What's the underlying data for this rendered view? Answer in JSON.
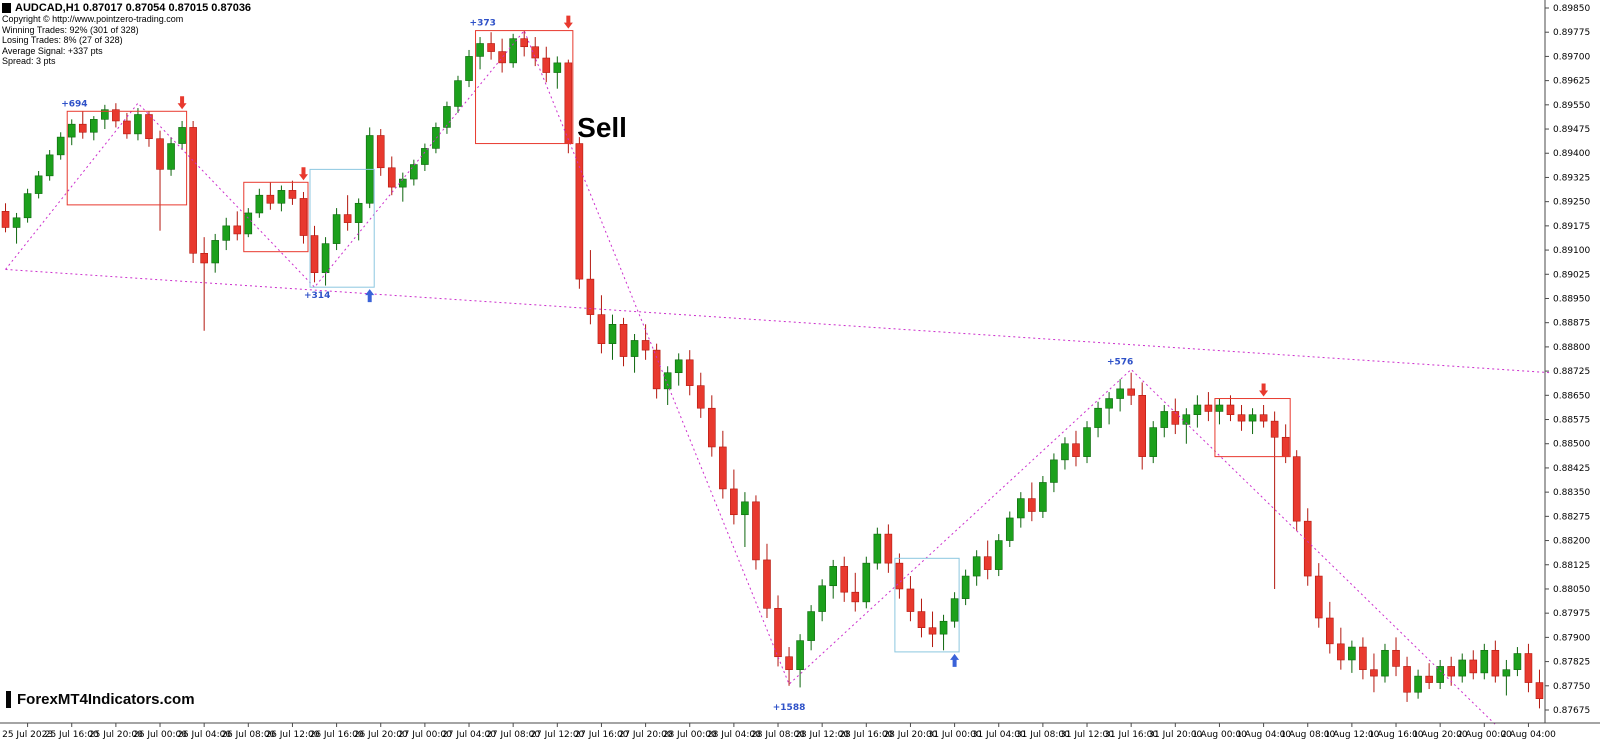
{
  "header": {
    "symbol_line": "AUDCAD,H1 0.87017 0.87054 0.87015 0.87036",
    "copyright": "Copyright © http://www.pointzero-trading.com",
    "winning": "Winning Trades: 92% (301 of 328)",
    "losing": "Losing Trades: 8% (27 of 328)",
    "average_signal": "Average Signal: +337 pts",
    "spread": "Spread: 3 pts"
  },
  "watermark": "ForexMT4Indicators.com",
  "chart_data": {
    "type": "candlestick",
    "symbol": "AUDCAD",
    "timeframe": "H1",
    "grid": false,
    "y_axis": {
      "min": 0.87675,
      "max": 0.8985,
      "step": 0.00075,
      "decimals": 5,
      "labels": [
        "0.89850",
        "0.89775",
        "0.89700",
        "0.89625",
        "0.89550",
        "0.89475",
        "0.89400",
        "0.89325",
        "0.89250",
        "0.89175",
        "0.89100",
        "0.89025",
        "0.88950",
        "0.88875",
        "0.88800",
        "0.88725",
        "0.88650",
        "0.88575",
        "0.88500",
        "0.88425",
        "0.88350",
        "0.88275",
        "0.88200",
        "0.88125",
        "0.88050",
        "0.87975",
        "0.87900",
        "0.87825",
        "0.87750",
        "0.87675"
      ]
    },
    "x_labels": [
      "25 Jul 2023",
      "25 Jul 16:00",
      "25 Jul 20:00",
      "26 Jul 00:00",
      "26 Jul 04:00",
      "26 Jul 08:00",
      "26 Jul 12:00",
      "26 Jul 16:00",
      "26 Jul 20:00",
      "27 Jul 00:00",
      "27 Jul 04:00",
      "27 Jul 08:00",
      "27 Jul 12:00",
      "27 Jul 16:00",
      "27 Jul 20:00",
      "28 Jul 00:00",
      "28 Jul 04:00",
      "28 Jul 08:00",
      "28 Jul 12:00",
      "28 Jul 16:00",
      "28 Jul 20:00",
      "31 Jul 00:00",
      "31 Jul 04:00",
      "31 Jul 08:00",
      "31 Jul 12:00",
      "31 Jul 16:00",
      "31 Jul 20:00",
      "1 Aug 00:00",
      "1 Aug 04:00",
      "1 Aug 08:00",
      "1 Aug 12:00",
      "1 Aug 16:00",
      "1 Aug 20:00",
      "2 Aug 00:00",
      "2 Aug 04:00"
    ],
    "x_label_first_candle": 2,
    "x_label_every": 4,
    "colors": {
      "bull": "#1CA01C",
      "bull_edge": "#0D660D",
      "bear": "#E8392E",
      "bear_edge": "#B3170E",
      "box_red": "#E8392E",
      "box_blue": "#8CC7E0",
      "label_blue": "#2E51C8",
      "buy_arrow": "#3A62D8",
      "sell_arrow": "#E8392E",
      "trendline": "#CC2ECC",
      "axis_text": "#000000",
      "axis_line": "#4A4A4A"
    },
    "candles": [
      [
        0.8922,
        0.89245,
        0.89155,
        0.8917
      ],
      [
        0.8917,
        0.89215,
        0.8912,
        0.892
      ],
      [
        0.892,
        0.8929,
        0.89185,
        0.89275
      ],
      [
        0.89275,
        0.89345,
        0.8926,
        0.8933
      ],
      [
        0.8933,
        0.8941,
        0.89315,
        0.89395
      ],
      [
        0.89395,
        0.89465,
        0.8938,
        0.8945
      ],
      [
        0.8945,
        0.89505,
        0.89425,
        0.8949
      ],
      [
        0.8949,
        0.8953,
        0.89445,
        0.89465
      ],
      [
        0.89465,
        0.89515,
        0.8944,
        0.89505
      ],
      [
        0.89505,
        0.8955,
        0.89475,
        0.89535
      ],
      [
        0.89535,
        0.89555,
        0.8948,
        0.895
      ],
      [
        0.895,
        0.89525,
        0.89445,
        0.8946
      ],
      [
        0.8946,
        0.8954,
        0.8944,
        0.8952
      ],
      [
        0.8952,
        0.8953,
        0.8942,
        0.89445
      ],
      [
        0.89445,
        0.8947,
        0.8916,
        0.8935
      ],
      [
        0.8935,
        0.8945,
        0.8933,
        0.8943
      ],
      [
        0.8943,
        0.895,
        0.8941,
        0.8948
      ],
      [
        0.8948,
        0.895,
        0.8906,
        0.8909
      ],
      [
        0.8909,
        0.8914,
        0.8885,
        0.8906
      ],
      [
        0.8906,
        0.8915,
        0.8903,
        0.8913
      ],
      [
        0.8913,
        0.892,
        0.891,
        0.89175
      ],
      [
        0.89175,
        0.8922,
        0.8913,
        0.8915
      ],
      [
        0.8915,
        0.8923,
        0.8914,
        0.89215
      ],
      [
        0.89215,
        0.8929,
        0.892,
        0.8927
      ],
      [
        0.8927,
        0.8931,
        0.89225,
        0.89245
      ],
      [
        0.89245,
        0.893,
        0.8922,
        0.89285
      ],
      [
        0.89285,
        0.89315,
        0.8924,
        0.8926
      ],
      [
        0.8926,
        0.8928,
        0.8912,
        0.89145
      ],
      [
        0.89145,
        0.89175,
        0.89,
        0.8903
      ],
      [
        0.8903,
        0.8914,
        0.8899,
        0.8912
      ],
      [
        0.8912,
        0.8923,
        0.891,
        0.8921
      ],
      [
        0.8921,
        0.8927,
        0.8916,
        0.89185
      ],
      [
        0.89185,
        0.8926,
        0.8913,
        0.89245
      ],
      [
        0.89245,
        0.8948,
        0.8923,
        0.89455
      ],
      [
        0.89455,
        0.89475,
        0.8933,
        0.89355
      ],
      [
        0.89355,
        0.8939,
        0.8927,
        0.89295
      ],
      [
        0.89295,
        0.8934,
        0.8925,
        0.8932
      ],
      [
        0.8932,
        0.8938,
        0.893,
        0.89365
      ],
      [
        0.89365,
        0.8943,
        0.89345,
        0.89415
      ],
      [
        0.89415,
        0.89495,
        0.894,
        0.8948
      ],
      [
        0.8948,
        0.8956,
        0.8946,
        0.89545
      ],
      [
        0.89545,
        0.8964,
        0.89525,
        0.89625
      ],
      [
        0.89625,
        0.8972,
        0.89605,
        0.897
      ],
      [
        0.897,
        0.8976,
        0.8966,
        0.8974
      ],
      [
        0.8974,
        0.89775,
        0.8969,
        0.89715
      ],
      [
        0.89715,
        0.89755,
        0.8965,
        0.8968
      ],
      [
        0.8968,
        0.8977,
        0.89665,
        0.89755
      ],
      [
        0.89755,
        0.8978,
        0.897,
        0.8973
      ],
      [
        0.8973,
        0.8976,
        0.8967,
        0.89695
      ],
      [
        0.89695,
        0.8973,
        0.8962,
        0.8965
      ],
      [
        0.8965,
        0.897,
        0.896,
        0.8968
      ],
      [
        0.8968,
        0.8969,
        0.894,
        0.8943
      ],
      [
        0.8943,
        0.8945,
        0.8898,
        0.8901
      ],
      [
        0.8901,
        0.891,
        0.8887,
        0.889
      ],
      [
        0.889,
        0.8896,
        0.8878,
        0.8881
      ],
      [
        0.8881,
        0.889,
        0.8876,
        0.8887
      ],
      [
        0.8887,
        0.8889,
        0.8874,
        0.8877
      ],
      [
        0.8877,
        0.8884,
        0.8872,
        0.8882
      ],
      [
        0.8882,
        0.8887,
        0.8876,
        0.8879
      ],
      [
        0.8879,
        0.8881,
        0.8864,
        0.8867
      ],
      [
        0.8867,
        0.8874,
        0.8862,
        0.8872
      ],
      [
        0.8872,
        0.8878,
        0.8868,
        0.8876
      ],
      [
        0.8876,
        0.8879,
        0.8865,
        0.8868
      ],
      [
        0.8868,
        0.8872,
        0.8858,
        0.8861
      ],
      [
        0.8861,
        0.8865,
        0.8846,
        0.8849
      ],
      [
        0.8849,
        0.8854,
        0.8833,
        0.8836
      ],
      [
        0.8836,
        0.8842,
        0.8825,
        0.8828
      ],
      [
        0.8828,
        0.8835,
        0.8818,
        0.8832
      ],
      [
        0.8832,
        0.8834,
        0.8811,
        0.8814
      ],
      [
        0.8814,
        0.8819,
        0.8796,
        0.8799
      ],
      [
        0.8799,
        0.8803,
        0.8781,
        0.8784
      ],
      [
        0.8784,
        0.8787,
        0.8775,
        0.878
      ],
      [
        0.878,
        0.8791,
        0.87745,
        0.8789
      ],
      [
        0.8789,
        0.88,
        0.8786,
        0.8798
      ],
      [
        0.8798,
        0.8808,
        0.8795,
        0.8806
      ],
      [
        0.8806,
        0.8814,
        0.8802,
        0.8812
      ],
      [
        0.8812,
        0.8815,
        0.8801,
        0.8804
      ],
      [
        0.8804,
        0.881,
        0.8798,
        0.8801
      ],
      [
        0.8801,
        0.8815,
        0.8799,
        0.8813
      ],
      [
        0.8813,
        0.8824,
        0.8811,
        0.8822
      ],
      [
        0.8822,
        0.8825,
        0.881,
        0.8813
      ],
      [
        0.8813,
        0.8816,
        0.8802,
        0.8805
      ],
      [
        0.8805,
        0.8809,
        0.8795,
        0.8798
      ],
      [
        0.8798,
        0.8802,
        0.879,
        0.8793
      ],
      [
        0.8793,
        0.8798,
        0.8787,
        0.8791
      ],
      [
        0.8791,
        0.8797,
        0.8786,
        0.8795
      ],
      [
        0.8795,
        0.8804,
        0.8793,
        0.8802
      ],
      [
        0.8802,
        0.8811,
        0.88,
        0.8809
      ],
      [
        0.8809,
        0.8817,
        0.8806,
        0.8815
      ],
      [
        0.8815,
        0.882,
        0.8808,
        0.8811
      ],
      [
        0.8811,
        0.8822,
        0.8809,
        0.882
      ],
      [
        0.882,
        0.8829,
        0.8818,
        0.8827
      ],
      [
        0.8827,
        0.8835,
        0.8824,
        0.8833
      ],
      [
        0.8833,
        0.8838,
        0.8826,
        0.8829
      ],
      [
        0.8829,
        0.884,
        0.8827,
        0.8838
      ],
      [
        0.8838,
        0.8847,
        0.8835,
        0.8845
      ],
      [
        0.8845,
        0.8852,
        0.8842,
        0.885
      ],
      [
        0.885,
        0.8854,
        0.8843,
        0.8846
      ],
      [
        0.8846,
        0.8857,
        0.8844,
        0.8855
      ],
      [
        0.8855,
        0.8863,
        0.8852,
        0.8861
      ],
      [
        0.8861,
        0.8866,
        0.8856,
        0.8864
      ],
      [
        0.8864,
        0.887,
        0.886,
        0.8867
      ],
      [
        0.8867,
        0.8872,
        0.8862,
        0.8865
      ],
      [
        0.8865,
        0.8869,
        0.8842,
        0.8846
      ],
      [
        0.8846,
        0.8857,
        0.8844,
        0.8855
      ],
      [
        0.8855,
        0.8862,
        0.8852,
        0.886
      ],
      [
        0.886,
        0.8864,
        0.8853,
        0.8856
      ],
      [
        0.8856,
        0.8861,
        0.885,
        0.8859
      ],
      [
        0.8859,
        0.8865,
        0.8855,
        0.8862
      ],
      [
        0.8862,
        0.8866,
        0.8857,
        0.886
      ],
      [
        0.886,
        0.8864,
        0.8856,
        0.8862
      ],
      [
        0.8862,
        0.8865,
        0.8857,
        0.8859
      ],
      [
        0.8859,
        0.8862,
        0.8854,
        0.8857
      ],
      [
        0.8857,
        0.8861,
        0.8853,
        0.8859
      ],
      [
        0.8859,
        0.8862,
        0.8855,
        0.8857
      ],
      [
        0.8857,
        0.886,
        0.8805,
        0.8852
      ],
      [
        0.8852,
        0.8856,
        0.8844,
        0.8846
      ],
      [
        0.8846,
        0.8848,
        0.8823,
        0.8826
      ],
      [
        0.8826,
        0.883,
        0.8806,
        0.8809
      ],
      [
        0.8809,
        0.8813,
        0.8793,
        0.8796
      ],
      [
        0.8796,
        0.8801,
        0.8785,
        0.8788
      ],
      [
        0.8788,
        0.8793,
        0.878,
        0.8783
      ],
      [
        0.8783,
        0.8789,
        0.8779,
        0.8787
      ],
      [
        0.8787,
        0.879,
        0.8777,
        0.878
      ],
      [
        0.878,
        0.8785,
        0.8773,
        0.8778
      ],
      [
        0.8778,
        0.8788,
        0.8776,
        0.8786
      ],
      [
        0.8786,
        0.879,
        0.8778,
        0.8781
      ],
      [
        0.8781,
        0.8784,
        0.877,
        0.8773
      ],
      [
        0.8773,
        0.878,
        0.8771,
        0.8778
      ],
      [
        0.8778,
        0.8782,
        0.8774,
        0.8776
      ],
      [
        0.8776,
        0.8783,
        0.8774,
        0.8781
      ],
      [
        0.8781,
        0.8784,
        0.8775,
        0.8778
      ],
      [
        0.8778,
        0.8785,
        0.8776,
        0.8783
      ],
      [
        0.8783,
        0.8786,
        0.8777,
        0.8779
      ],
      [
        0.8779,
        0.8788,
        0.8777,
        0.8786
      ],
      [
        0.8786,
        0.8789,
        0.8776,
        0.8778
      ],
      [
        0.8778,
        0.8783,
        0.8772,
        0.878
      ],
      [
        0.878,
        0.8787,
        0.8778,
        0.8785
      ],
      [
        0.8785,
        0.8788,
        0.8773,
        0.8776
      ],
      [
        0.8776,
        0.878,
        0.8768,
        0.8771
      ]
    ],
    "signal_boxes": [
      {
        "color": "red",
        "from": 6,
        "to": 16,
        "top": 0.8953,
        "bottom": 0.8924,
        "label": "+694",
        "label_pos": "top-left",
        "arrow": "down",
        "arrow_at": 16
      },
      {
        "color": "red",
        "from": 22,
        "to": 27,
        "top": 0.8931,
        "bottom": 0.89095,
        "label": "",
        "label_pos": "top-left",
        "arrow": "down",
        "arrow_at": 27
      },
      {
        "color": "blue",
        "from": 28,
        "to": 33,
        "top": 0.8935,
        "bottom": 0.88985,
        "label": "+314",
        "label_pos": "bottom-left",
        "arrow": "up",
        "arrow_at": 33
      },
      {
        "color": "red",
        "from": 43,
        "to": 51,
        "top": 0.8978,
        "bottom": 0.8943,
        "label": "+373",
        "label_pos": "top-left",
        "arrow": "down",
        "arrow_at": 51
      },
      {
        "color": "blue",
        "from": 81,
        "to": 86,
        "top": 0.88145,
        "bottom": 0.87855,
        "label": "",
        "label_pos": "bottom-left",
        "arrow": "up",
        "arrow_at": 86
      },
      {
        "color": "red",
        "from": 110,
        "to": 116,
        "top": 0.8864,
        "bottom": 0.8846,
        "label": "",
        "label_pos": "top-left",
        "arrow": "down",
        "arrow_at": 114
      }
    ],
    "float_labels": [
      {
        "text": "+1588",
        "index": 71,
        "price": 0.87685
      },
      {
        "text": "+576",
        "index": 101,
        "price": 0.88755
      }
    ],
    "trendlines": [
      {
        "points": [
          [
            0,
            0.8904
          ],
          [
            140,
            0.8872
          ]
        ]
      },
      {
        "points": [
          [
            0,
            0.8904
          ],
          [
            12,
            0.89555
          ],
          [
            28,
            0.88985
          ],
          [
            47,
            0.8978
          ],
          [
            71,
            0.87755
          ],
          [
            102,
            0.8873
          ],
          [
            135,
            0.8763
          ]
        ]
      }
    ],
    "annotation": {
      "text": "Sell",
      "index": 51.8,
      "price": 0.8945
    }
  }
}
